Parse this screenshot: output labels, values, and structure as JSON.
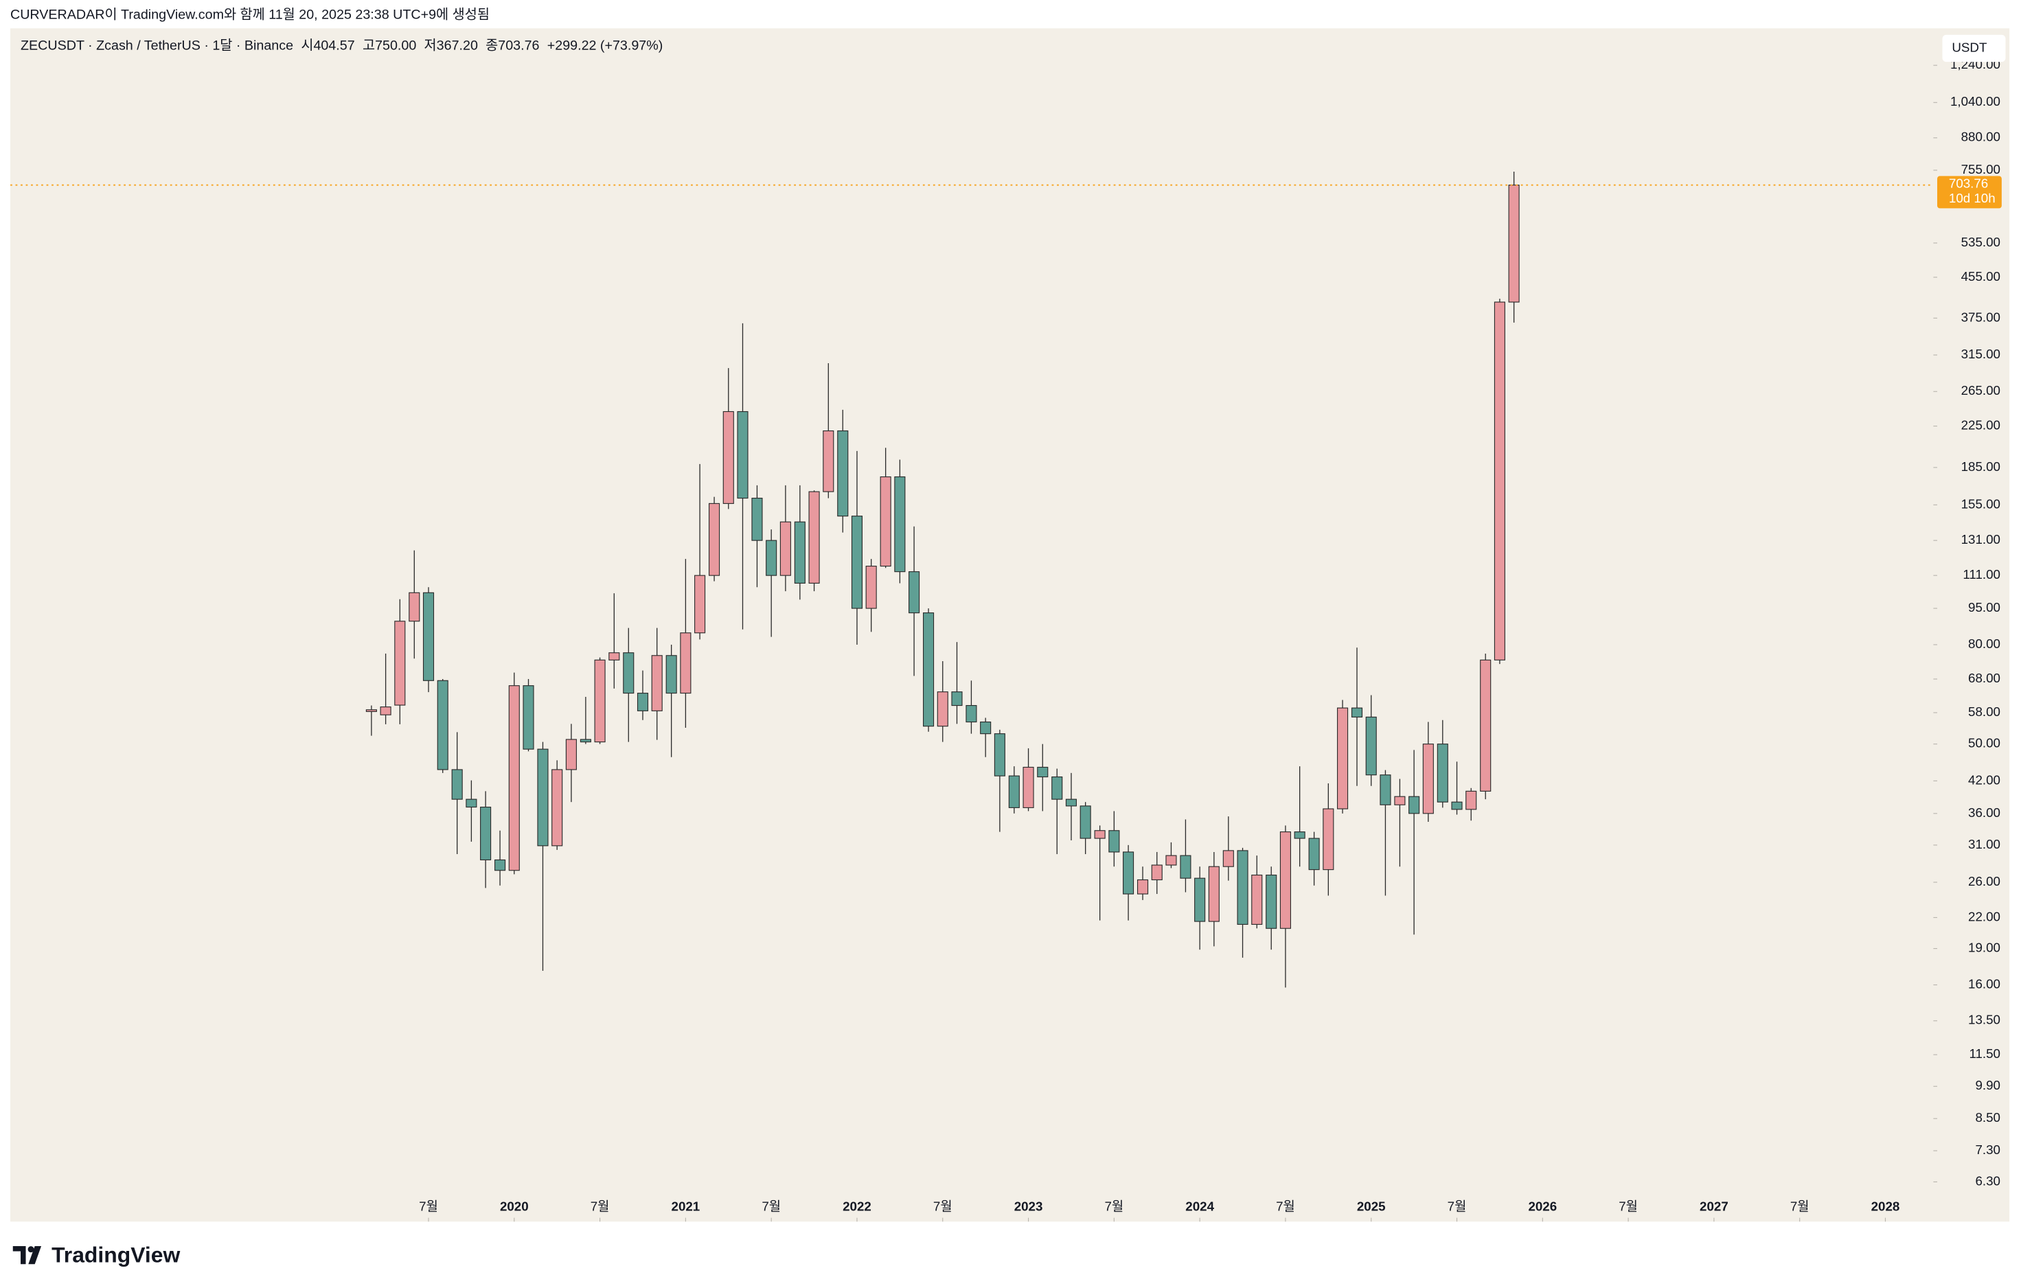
{
  "caption": "CURVERADAR이 TradingView.com와 함께 11월 20, 2025 23:38 UTC+9에 생성됨",
  "header": {
    "symbol": "ZECUSDT · Zcash / TetherUS · 1달 · Binance",
    "ohlc": [
      {
        "label": "시",
        "value": "404.57"
      },
      {
        "label": "고",
        "value": "750.00"
      },
      {
        "label": "저",
        "value": "367.20"
      },
      {
        "label": "종",
        "value": "703.76"
      }
    ],
    "change": "+299.22 (+73.97%)"
  },
  "currency": "USDT",
  "brand": "TradingView",
  "chart_data": {
    "type": "candlestick",
    "log_scale": true,
    "grid": false,
    "up_color": "#e8999e",
    "down_color": "#5f9f94",
    "outline_color": "#2a2a2a",
    "x": [
      2019.167,
      2019.25,
      2019.333,
      2019.417,
      2019.5,
      2019.583,
      2019.667,
      2019.75,
      2019.833,
      2019.917,
      2020,
      2020.083,
      2020.167,
      2020.25,
      2020.333,
      2020.417,
      2020.5,
      2020.583,
      2020.667,
      2020.75,
      2020.833,
      2020.917,
      2021,
      2021.083,
      2021.167,
      2021.25,
      2021.333,
      2021.417,
      2021.5,
      2021.583,
      2021.667,
      2021.75,
      2021.833,
      2021.917,
      2022,
      2022.083,
      2022.167,
      2022.25,
      2022.333,
      2022.417,
      2022.5,
      2022.583,
      2022.667,
      2022.75,
      2022.833,
      2022.917,
      2023,
      2023.083,
      2023.167,
      2023.25,
      2023.333,
      2023.417,
      2023.5,
      2023.583,
      2023.667,
      2023.75,
      2023.833,
      2023.917,
      2024,
      2024.083,
      2024.167,
      2024.25,
      2024.333,
      2024.417,
      2024.5,
      2024.583,
      2024.667,
      2024.75,
      2024.833,
      2024.917,
      2025,
      2025.083,
      2025.167,
      2025.25,
      2025.333,
      2025.417,
      2025.5,
      2025.583,
      2025.667,
      2025.75,
      2025.833
    ],
    "open": [
      58.3,
      57.4,
      60.1,
      89.4,
      102.3,
      67.5,
      44.3,
      38.5,
      37.1,
      28.9,
      27.5,
      65.9,
      48.8,
      30.9,
      44.3,
      51.1,
      50.5,
      74.4,
      77,
      63.6,
      58.5,
      76,
      63.6,
      84.6,
      111,
      156,
      241,
      160,
      131,
      111,
      143,
      107,
      165,
      220,
      147,
      95,
      116,
      177,
      113,
      93,
      54.4,
      64,
      60,
      55.5,
      52.5,
      43,
      37,
      44.8,
      42.8,
      38.5,
      37.3,
      32,
      33.2,
      30,
      24.6,
      26.3,
      28.2,
      29.5,
      26.5,
      21.6,
      28,
      30.2,
      21.3,
      26.9,
      20.9,
      33,
      32,
      27.6,
      36.8,
      59.3,
      56.8,
      43.2,
      37.5,
      39,
      36,
      50,
      38,
      36.7,
      40,
      74.4,
      404.57
    ],
    "high": [
      60,
      76.7,
      99.2,
      125,
      105,
      68,
      52.9,
      42.1,
      40,
      33.2,
      70.1,
      68,
      50.5,
      46.3,
      55,
      62.5,
      75.3,
      102,
      86.6,
      70.8,
      86.6,
      80,
      120,
      188,
      161,
      296,
      366,
      170,
      138,
      170,
      170,
      166,
      303,
      243,
      200,
      120,
      203,
      192,
      140,
      95,
      74,
      81,
      67.5,
      56.6,
      53.5,
      45,
      49,
      50,
      44.5,
      43.6,
      38,
      34,
      36.4,
      31,
      28,
      30,
      31.4,
      35,
      28,
      30,
      35.5,
      30.6,
      29.5,
      28,
      34,
      45,
      33,
      41.5,
      61.6,
      78.9,
      63,
      44.2,
      42.4,
      48.6,
      55.5,
      56,
      46,
      40.6,
      76.7,
      411,
      750
    ],
    "low": [
      52,
      54.9,
      54.9,
      74.9,
      63.9,
      43.6,
      29.7,
      31.5,
      25.3,
      25.6,
      27,
      48.3,
      17.1,
      30.3,
      38,
      50,
      50,
      65,
      50.5,
      56,
      51,
      47,
      54,
      82,
      108,
      152,
      86,
      105,
      83,
      103,
      99,
      103,
      160,
      136,
      80,
      85,
      115,
      107,
      69,
      53,
      50.5,
      55,
      52.5,
      47,
      33,
      36,
      36.4,
      36.4,
      29.7,
      31.7,
      29.7,
      21.7,
      28,
      21.7,
      23.9,
      24.6,
      27.8,
      24.8,
      18.9,
      19.2,
      26.2,
      18.2,
      20.9,
      18.9,
      15.8,
      28,
      25.6,
      24.4,
      36,
      41,
      41,
      24.4,
      28,
      20.3,
      34.6,
      37,
      35.8,
      34.8,
      38.5,
      73,
      367.2
    ],
    "close": [
      58.8,
      59.6,
      89.4,
      102.3,
      67.5,
      44.3,
      38.5,
      37.1,
      28.9,
      27.5,
      65.9,
      48.8,
      30.9,
      44.3,
      51.1,
      50.5,
      74.4,
      77,
      63.6,
      58.5,
      76,
      63.6,
      84.6,
      111,
      156,
      241,
      160,
      131,
      111,
      143,
      107,
      165,
      220,
      147,
      95,
      116,
      177,
      113,
      93,
      54.4,
      64,
      60,
      55.5,
      52.5,
      43,
      37,
      44.8,
      42.8,
      38.5,
      37.3,
      32,
      33.2,
      30,
      24.6,
      26.3,
      28.2,
      29.5,
      26.5,
      21.6,
      28,
      30.2,
      21.3,
      26.9,
      20.9,
      33,
      32,
      27.6,
      36.8,
      59.3,
      56.8,
      43.2,
      37.5,
      39,
      36,
      50,
      38,
      36.7,
      40,
      74.4,
      404.57,
      703.76
    ],
    "last_price": {
      "value": 703.76,
      "countdown": "10d 10h",
      "color": "#f7a21b"
    },
    "xlim": [
      2017.06,
      2028.28
    ],
    "xticks": [
      {
        "value": 2019.5,
        "label": "7월"
      },
      2020,
      {
        "value": 2020.5,
        "label": "7월"
      },
      2021,
      {
        "value": 2021.5,
        "label": "7월"
      },
      2022,
      {
        "value": 2022.5,
        "label": "7월"
      },
      2023,
      {
        "value": 2023.5,
        "label": "7월"
      },
      2024,
      {
        "value": 2024.5,
        "label": "7월"
      },
      2025,
      {
        "value": 2025.5,
        "label": "7월"
      },
      2026,
      {
        "value": 2026.5,
        "label": "7월"
      },
      2027,
      {
        "value": 2027.5,
        "label": "7월"
      },
      2028
    ],
    "ylim": [
      5.22,
      1477
    ],
    "yticks": [
      {
        "value": 1240,
        "label": "1,240.00"
      },
      {
        "value": 1040,
        "label": "1,040.00"
      },
      {
        "value": 880,
        "label": "880.00"
      },
      {
        "value": 755,
        "label": "755.00"
      },
      {
        "value": 535,
        "label": "535.00"
      },
      {
        "value": 455,
        "label": "455.00"
      },
      {
        "value": 375,
        "label": "375.00"
      },
      {
        "value": 315,
        "label": "315.00"
      },
      {
        "value": 265,
        "label": "265.00"
      },
      {
        "value": 225,
        "label": "225.00"
      },
      {
        "value": 185,
        "label": "185.00"
      },
      {
        "value": 155,
        "label": "155.00"
      },
      {
        "value": 131,
        "label": "131.00"
      },
      {
        "value": 111,
        "label": "111.00"
      },
      {
        "value": 95,
        "label": "95.00"
      },
      {
        "value": 80,
        "label": "80.00"
      },
      {
        "value": 68,
        "label": "68.00"
      },
      {
        "value": 58,
        "label": "58.00"
      },
      {
        "value": 50,
        "label": "50.00"
      },
      {
        "value": 42,
        "label": "42.00"
      },
      {
        "value": 36,
        "label": "36.00"
      },
      {
        "value": 31,
        "label": "31.00"
      },
      {
        "value": 26,
        "label": "26.00"
      },
      {
        "value": 22,
        "label": "22.00"
      },
      {
        "value": 19,
        "label": "19.00"
      },
      {
        "value": 16,
        "label": "16.00"
      },
      {
        "value": 13.5,
        "label": "13.50"
      },
      {
        "value": 11.5,
        "label": "11.50"
      },
      {
        "value": 9.9,
        "label": "9.90"
      },
      {
        "value": 8.5,
        "label": "8.50"
      },
      {
        "value": 7.3,
        "label": "7.30"
      },
      {
        "value": 6.3,
        "label": "6.30"
      }
    ]
  }
}
